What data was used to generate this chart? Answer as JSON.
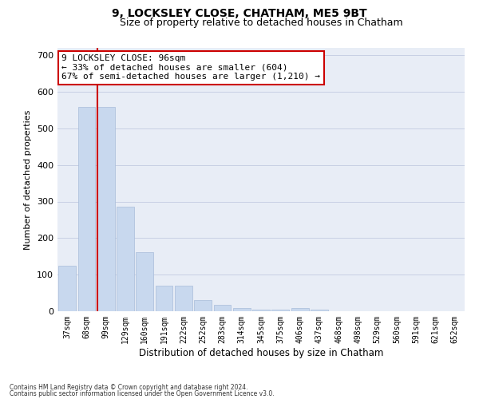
{
  "title": "9, LOCKSLEY CLOSE, CHATHAM, ME5 9BT",
  "subtitle": "Size of property relative to detached houses in Chatham",
  "xlabel": "Distribution of detached houses by size in Chatham",
  "ylabel": "Number of detached properties",
  "categories": [
    "37sqm",
    "68sqm",
    "99sqm",
    "129sqm",
    "160sqm",
    "191sqm",
    "222sqm",
    "252sqm",
    "283sqm",
    "314sqm",
    "345sqm",
    "375sqm",
    "406sqm",
    "437sqm",
    "468sqm",
    "498sqm",
    "529sqm",
    "560sqm",
    "591sqm",
    "621sqm",
    "652sqm"
  ],
  "values": [
    125,
    558,
    558,
    285,
    162,
    70,
    70,
    30,
    18,
    9,
    5,
    5,
    9,
    5,
    0,
    0,
    0,
    0,
    0,
    0,
    0
  ],
  "bar_color": "#c8d8ee",
  "bar_edge_color": "#a8bcda",
  "vline_x_index": 2,
  "vline_color": "#cc0000",
  "property_label": "9 LOCKSLEY CLOSE: 96sqm",
  "annotation_line1": "← 33% of detached houses are smaller (604)",
  "annotation_line2": "67% of semi-detached houses are larger (1,210) →",
  "annotation_box_color": "#ffffff",
  "annotation_box_edge": "#cc0000",
  "ylim": [
    0,
    720
  ],
  "yticks": [
    0,
    100,
    200,
    300,
    400,
    500,
    600,
    700
  ],
  "footnote1": "Contains HM Land Registry data © Crown copyright and database right 2024.",
  "footnote2": "Contains public sector information licensed under the Open Government Licence v3.0.",
  "background_color": "#ffffff",
  "plot_bg_color": "#e8edf6",
  "grid_color": "#c8d0e4",
  "title_fontsize": 10,
  "subtitle_fontsize": 9,
  "annotation_fontsize": 8
}
